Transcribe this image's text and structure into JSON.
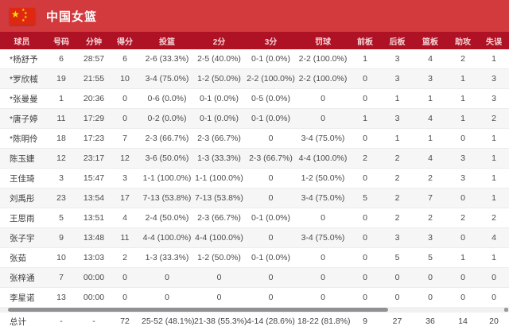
{
  "header": {
    "title": "中国女篮",
    "flag_icon": "china-flag"
  },
  "colors": {
    "header_red": "#d23a3e",
    "subheader_red": "#ae1224",
    "flag_red": "#de2910",
    "star_yellow": "#ffde00",
    "row_alt": "#f6f6f7",
    "cell_text": "#4a4a4a",
    "divider": "#ececec"
  },
  "table": {
    "columns": [
      "球员",
      "号码",
      "分钟",
      "得分",
      "投篮",
      "2分",
      "3分",
      "罚球",
      "前板",
      "后板",
      "篮板",
      "助攻",
      "失误"
    ],
    "rows": [
      [
        "*杨舒予",
        "6",
        "28:57",
        "6",
        "2-6 (33.3%)",
        "2-5 (40.0%)",
        "0-1 (0.0%)",
        "2-2 (100.0%)",
        "1",
        "3",
        "4",
        "2",
        "1"
      ],
      [
        "*罗欣棫",
        "19",
        "21:55",
        "10",
        "3-4 (75.0%)",
        "1-2 (50.0%)",
        "2-2 (100.0%)",
        "2-2 (100.0%)",
        "0",
        "3",
        "3",
        "1",
        "3"
      ],
      [
        "*张曼曼",
        "1",
        "20:36",
        "0",
        "0-6 (0.0%)",
        "0-1 (0.0%)",
        "0-5 (0.0%)",
        "0",
        "0",
        "1",
        "1",
        "1",
        "3"
      ],
      [
        "*唐子婷",
        "11",
        "17:29",
        "0",
        "0-2 (0.0%)",
        "0-1 (0.0%)",
        "0-1 (0.0%)",
        "0",
        "1",
        "3",
        "4",
        "1",
        "2"
      ],
      [
        "*陈明伶",
        "18",
        "17:23",
        "7",
        "2-3 (66.7%)",
        "2-3 (66.7%)",
        "0",
        "3-4 (75.0%)",
        "0",
        "1",
        "1",
        "0",
        "1"
      ],
      [
        "陈玉婕",
        "12",
        "23:17",
        "12",
        "3-6 (50.0%)",
        "1-3 (33.3%)",
        "2-3 (66.7%)",
        "4-4 (100.0%)",
        "2",
        "2",
        "4",
        "3",
        "1"
      ],
      [
        "王佳琦",
        "3",
        "15:47",
        "3",
        "1-1 (100.0%)",
        "1-1 (100.0%)",
        "0",
        "1-2 (50.0%)",
        "0",
        "2",
        "2",
        "3",
        "1"
      ],
      [
        "刘禹彤",
        "23",
        "13:54",
        "17",
        "7-13 (53.8%)",
        "7-13 (53.8%)",
        "0",
        "3-4 (75.0%)",
        "5",
        "2",
        "7",
        "0",
        "1"
      ],
      [
        "王思雨",
        "5",
        "13:51",
        "4",
        "2-4 (50.0%)",
        "2-3 (66.7%)",
        "0-1 (0.0%)",
        "0",
        "0",
        "2",
        "2",
        "2",
        "2"
      ],
      [
        "张子宇",
        "9",
        "13:48",
        "11",
        "4-4 (100.0%)",
        "4-4 (100.0%)",
        "0",
        "3-4 (75.0%)",
        "0",
        "3",
        "3",
        "0",
        "4"
      ],
      [
        "张茹",
        "10",
        "13:03",
        "2",
        "1-3 (33.3%)",
        "1-2 (50.0%)",
        "0-1 (0.0%)",
        "0",
        "0",
        "5",
        "5",
        "1",
        "1"
      ],
      [
        "张梓通",
        "7",
        "00:00",
        "0",
        "0",
        "0",
        "0",
        "0",
        "0",
        "0",
        "0",
        "0",
        "0"
      ],
      [
        "李星诺",
        "13",
        "00:00",
        "0",
        "0",
        "0",
        "0",
        "0",
        "0",
        "0",
        "0",
        "0",
        "0"
      ]
    ],
    "total": [
      "总计",
      "-",
      "-",
      "72",
      "25-52 (48.1%)",
      "21-38 (55.3%)",
      "4-14 (28.6%)",
      "18-22 (81.8%)",
      "9",
      "27",
      "36",
      "14",
      "20"
    ]
  }
}
